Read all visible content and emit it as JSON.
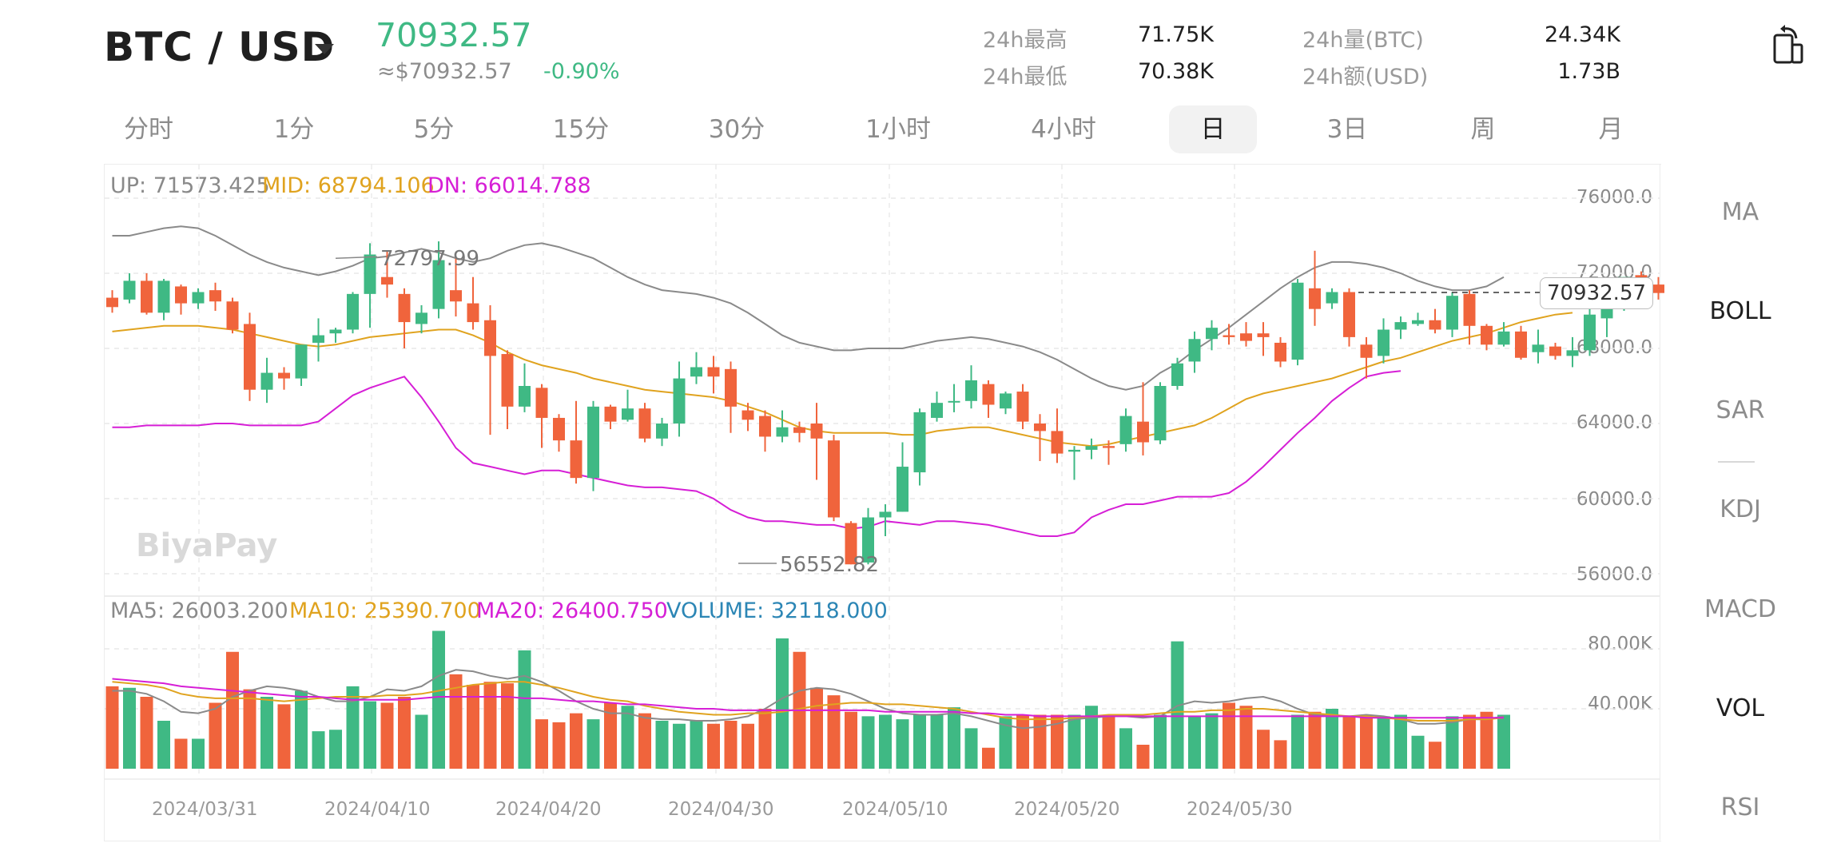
{
  "header": {
    "pair": "BTC / USD",
    "price": "70932.57",
    "approx": "≈$70932.57",
    "change": "-0.90%",
    "stats": {
      "high_label": "24h最高",
      "high_value": "71.75K",
      "low_label": "24h最低",
      "low_value": "70.38K",
      "vol_label": "24h量(BTC)",
      "vol_value": "24.34K",
      "amt_label": "24h额(USD)",
      "amt_value": "1.73B"
    }
  },
  "timeframes": [
    "分时",
    "1分",
    "5分",
    "15分",
    "30分",
    "1小时",
    "4小时",
    "日",
    "3日",
    "周",
    "月"
  ],
  "active_timeframe": "日",
  "indicators": [
    "MA",
    "BOLL",
    "SAR",
    "KDJ",
    "MACD",
    "VOL",
    "RSI"
  ],
  "active_indicators": [
    "BOLL",
    "VOL"
  ],
  "legend": {
    "boll_up": "UP: 71573.425",
    "boll_mid": "MID: 68794.106",
    "boll_dn": "DN: 66014.788",
    "vol_ma5": "MA5: 26003.200",
    "vol_ma10": "MA10: 25390.700",
    "vol_ma20": "MA20: 26400.750",
    "volume": "VOLUME: 32118.000"
  },
  "markers": {
    "high": "72797.99",
    "low": "56552.82",
    "last": "70932.57"
  },
  "watermark": "BiyaPay",
  "colors": {
    "up": "#3fb984",
    "down": "#f0643c",
    "boll_up": "#8a8a8a",
    "boll_mid": "#e0a31f",
    "boll_dn": "#d61fd6",
    "vol_ma5": "#8a8a8a",
    "volume": "#2c86b5"
  },
  "chart_data": {
    "type": "candlestick",
    "price_axis": [
      "76000.0",
      "72000.0",
      "68000.0",
      "64000.0",
      "60000.0",
      "56000.0"
    ],
    "volume_axis": [
      "80.00K",
      "40.00K"
    ],
    "dates": [
      "2024/03/31",
      "2024/04/10",
      "2024/04/20",
      "2024/04/30",
      "2024/05/10",
      "2024/05/20",
      "2024/05/30"
    ],
    "candles": [
      [
        70700,
        70200,
        71100,
        69900
      ],
      [
        70600,
        71600,
        72000,
        70400
      ],
      [
        71600,
        69900,
        72000,
        69800
      ],
      [
        69900,
        71600,
        71700,
        69500
      ],
      [
        71300,
        70400,
        71400,
        69800
      ],
      [
        70400,
        71000,
        71200,
        70100
      ],
      [
        71100,
        70500,
        71500,
        70000
      ],
      [
        70500,
        69000,
        70700,
        68800
      ],
      [
        69300,
        65800,
        69900,
        65200
      ],
      [
        65800,
        66700,
        67500,
        65100
      ],
      [
        66700,
        66400,
        67000,
        65800
      ],
      [
        66400,
        68200,
        68200,
        66000
      ],
      [
        68300,
        68700,
        69600,
        67300
      ],
      [
        68800,
        69000,
        69100,
        68300
      ],
      [
        69000,
        70900,
        71000,
        68800
      ],
      [
        70900,
        73000,
        73600,
        69100
      ],
      [
        71800,
        71400,
        73200,
        70700
      ],
      [
        70900,
        69400,
        71200,
        68000
      ],
      [
        69300,
        69900,
        70300,
        68800
      ],
      [
        70100,
        72700,
        73700,
        69600
      ],
      [
        71100,
        70500,
        72800,
        69700
      ],
      [
        70400,
        69400,
        71800,
        69000
      ],
      [
        69500,
        67600,
        70300,
        63400
      ],
      [
        67700,
        64900,
        67900,
        63700
      ],
      [
        64900,
        66000,
        67200,
        64600
      ],
      [
        65900,
        64300,
        66100,
        62700
      ],
      [
        64300,
        63100,
        64500,
        62500
      ],
      [
        63100,
        61100,
        65200,
        60800
      ],
      [
        61100,
        64900,
        65200,
        60400
      ],
      [
        64900,
        64100,
        65000,
        63700
      ],
      [
        64200,
        64800,
        65800,
        64100
      ],
      [
        64800,
        63200,
        65100,
        63000
      ],
      [
        63200,
        64000,
        64300,
        62800
      ],
      [
        64000,
        66400,
        67300,
        63300
      ],
      [
        66500,
        67000,
        67800,
        66100
      ],
      [
        67000,
        66500,
        67600,
        65600
      ],
      [
        66900,
        64900,
        67300,
        63500
      ],
      [
        64700,
        64200,
        65100,
        63600
      ],
      [
        64400,
        63300,
        64700,
        62500
      ],
      [
        63300,
        63800,
        64700,
        63000
      ],
      [
        63800,
        63500,
        64100,
        63000
      ],
      [
        64000,
        63200,
        65100,
        61000
      ],
      [
        63100,
        59000,
        63400,
        58800
      ],
      [
        58700,
        56500,
        58800,
        56500
      ],
      [
        56600,
        59000,
        59500,
        56500
      ],
      [
        59000,
        59300,
        59700,
        58000
      ],
      [
        59300,
        61700,
        63000,
        59300
      ],
      [
        61400,
        64600,
        64800,
        60700
      ],
      [
        64300,
        65100,
        65700,
        64100
      ],
      [
        65200,
        65200,
        66100,
        64600
      ],
      [
        65200,
        66300,
        67100,
        64800
      ],
      [
        66100,
        65000,
        66300,
        64300
      ],
      [
        64800,
        65600,
        65700,
        64500
      ],
      [
        65700,
        64100,
        66100,
        63700
      ],
      [
        64000,
        63600,
        64500,
        62000
      ],
      [
        63600,
        62400,
        64800,
        61900
      ],
      [
        62500,
        62600,
        62800,
        61000
      ],
      [
        62600,
        62800,
        63200,
        62100
      ],
      [
        62800,
        62700,
        63100,
        61800
      ],
      [
        62900,
        64400,
        64800,
        62500
      ],
      [
        64100,
        63000,
        66200,
        62300
      ],
      [
        63100,
        66000,
        66200,
        62900
      ],
      [
        66000,
        67200,
        67500,
        65800
      ],
      [
        67300,
        68500,
        68900,
        66700
      ],
      [
        68500,
        69100,
        69500,
        67900
      ],
      [
        68700,
        68600,
        69300,
        68200
      ],
      [
        68800,
        68400,
        69400,
        68100
      ],
      [
        68800,
        68600,
        69400,
        67600
      ],
      [
        68300,
        67300,
        68600,
        67000
      ],
      [
        67400,
        71500,
        71700,
        67100
      ],
      [
        71200,
        70100,
        73200,
        69200
      ],
      [
        70400,
        71000,
        71200,
        70100
      ],
      [
        71000,
        68600,
        71200,
        68100
      ],
      [
        68200,
        67500,
        68600,
        66400
      ],
      [
        67600,
        69000,
        69600,
        67200
      ],
      [
        69000,
        69400,
        69700,
        68500
      ],
      [
        69300,
        69500,
        69900,
        69200
      ],
      [
        69500,
        69000,
        70100,
        68800
      ],
      [
        69000,
        70800,
        71000,
        68600
      ],
      [
        70900,
        69200,
        71100,
        68200
      ],
      [
        69200,
        68200,
        69300,
        67900
      ],
      [
        68200,
        68900,
        69400,
        68100
      ],
      [
        68900,
        67500,
        69200,
        67400
      ],
      [
        67800,
        68200,
        69000,
        67200
      ],
      [
        68100,
        67600,
        68300,
        67400
      ],
      [
        67600,
        67900,
        68600,
        67000
      ],
      [
        67900,
        69800,
        70100,
        67600
      ],
      [
        69600,
        70600,
        71000,
        68600
      ],
      [
        70400,
        71800,
        71800,
        70000
      ],
      [
        71900,
        71100,
        72100,
        70700
      ],
      [
        71400,
        70950,
        71800,
        70600
      ]
    ],
    "boll_up": [
      74000,
      74000,
      74200,
      74400,
      74500,
      74400,
      74000,
      73500,
      73000,
      72600,
      72300,
      72100,
      71900,
      72100,
      72400,
      72800,
      72900,
      73100,
      73300,
      73100,
      72800,
      72600,
      72800,
      73200,
      73500,
      73600,
      73400,
      73100,
      72800,
      72300,
      71800,
      71400,
      71100,
      71000,
      70900,
      70700,
      70400,
      69900,
      69300,
      68700,
      68300,
      68100,
      67900,
      67900,
      68000,
      68000,
      68000,
      68200,
      68400,
      68500,
      68600,
      68500,
      68300,
      68100,
      67800,
      67400,
      66900,
      66400,
      66000,
      65800,
      66000,
      66700,
      67200,
      67900,
      68500,
      69100,
      69800,
      70500,
      71200,
      71800,
      72300,
      72600,
      72600,
      72500,
      72300,
      72000,
      71600,
      71300,
      71100,
      71100,
      71300,
      71800
    ],
    "boll_mid": [
      68900,
      69000,
      69100,
      69200,
      69200,
      69200,
      69100,
      69000,
      68800,
      68600,
      68400,
      68200,
      68100,
      68200,
      68400,
      68600,
      68700,
      68800,
      68900,
      69000,
      69000,
      68700,
      68300,
      67800,
      67400,
      67100,
      66900,
      66700,
      66400,
      66200,
      66000,
      65800,
      65700,
      65600,
      65500,
      65400,
      65200,
      64900,
      64600,
      64200,
      63800,
      63600,
      63500,
      63500,
      63500,
      63500,
      63400,
      63400,
      63600,
      63700,
      63800,
      63800,
      63600,
      63400,
      63200,
      63000,
      62900,
      62800,
      62900,
      63100,
      63300,
      63500,
      63700,
      63900,
      64300,
      64800,
      65300,
      65600,
      65800,
      66000,
      66200,
      66400,
      66700,
      67000,
      67300,
      67500,
      67800,
      68100,
      68400,
      68600,
      68800,
      69100,
      69400,
      69600,
      69800,
      69900
    ],
    "boll_dn": [
      63800,
      63800,
      63900,
      63900,
      63900,
      63900,
      64000,
      64000,
      63900,
      63900,
      63900,
      63900,
      64100,
      64800,
      65500,
      65900,
      66200,
      66500,
      65400,
      64100,
      62700,
      61900,
      61700,
      61500,
      61300,
      61500,
      61500,
      61300,
      61100,
      60900,
      60700,
      60600,
      60600,
      60500,
      60400,
      60000,
      59400,
      59000,
      58800,
      58800,
      58700,
      58600,
      58600,
      58400,
      58500,
      58800,
      58700,
      58600,
      58800,
      58800,
      58700,
      58600,
      58400,
      58200,
      58000,
      58000,
      58200,
      59000,
      59400,
      59700,
      59700,
      59900,
      60100,
      60100,
      60100,
      60300,
      60900,
      61700,
      62600,
      63500,
      64300,
      65200,
      65900,
      66500,
      66700,
      66800
    ],
    "volume": [
      55,
      54,
      48,
      32,
      20,
      20,
      44,
      78,
      53,
      48,
      43,
      52,
      25,
      26,
      55,
      45,
      44,
      48,
      36,
      92,
      63,
      56,
      58,
      57,
      79,
      33,
      31,
      37,
      33,
      44,
      42,
      37,
      32,
      30,
      32,
      30,
      32,
      30,
      40,
      87,
      78,
      54,
      49,
      38,
      35,
      36,
      33,
      36,
      36,
      41,
      27,
      14,
      35,
      36,
      36,
      36,
      36,
      42,
      36,
      27,
      16,
      36,
      85,
      35,
      37,
      44,
      42,
      26,
      19,
      36,
      38,
      40,
      35,
      36,
      35,
      36,
      22,
      18,
      35,
      36,
      38,
      36
    ],
    "vol_ma5": [
      52,
      52,
      50,
      45,
      38,
      37,
      40,
      48,
      52,
      55,
      54,
      52,
      48,
      45,
      45,
      48,
      53,
      52,
      55,
      62,
      66,
      65,
      62,
      60,
      62,
      58,
      52,
      45,
      40,
      37,
      37,
      34,
      33,
      33,
      32,
      32,
      33,
      35,
      40,
      47,
      52,
      54,
      53,
      50,
      45,
      40,
      37,
      36,
      36,
      37,
      35,
      32,
      29,
      27,
      28,
      30,
      33,
      34,
      35,
      35,
      34,
      35,
      42,
      45,
      44,
      45,
      47,
      48,
      45,
      40,
      36,
      35,
      35,
      36,
      35,
      33,
      30,
      30,
      31,
      33,
      33,
      35
    ],
    "vol_ma10": [
      58,
      57,
      56,
      54,
      50,
      48,
      47,
      47,
      47,
      46,
      45,
      46,
      47,
      48,
      48,
      48,
      49,
      49,
      50,
      52,
      54,
      56,
      57,
      58,
      58,
      56,
      54,
      51,
      48,
      46,
      45,
      42,
      40,
      38,
      37,
      36,
      36,
      37,
      37,
      38,
      40,
      42,
      43,
      44,
      44,
      43,
      43,
      42,
      41,
      40,
      38,
      36,
      34,
      33,
      33,
      33,
      34,
      35,
      36,
      36,
      36,
      37,
      38,
      38,
      39,
      39,
      40,
      40,
      39,
      38,
      37,
      36,
      35,
      35,
      34,
      33,
      32,
      32,
      32,
      33,
      33,
      34
    ],
    "vol_ma20": [
      60,
      59,
      58,
      57,
      55,
      54,
      53,
      52,
      51,
      50,
      49,
      48,
      48,
      47,
      46,
      46,
      46,
      46,
      47,
      48,
      48,
      48,
      48,
      48,
      47,
      47,
      46,
      45,
      45,
      44,
      43,
      43,
      42,
      41,
      40,
      40,
      39,
      39,
      39,
      39,
      39,
      39,
      39,
      39,
      39,
      38,
      38,
      38,
      38,
      38,
      37,
      37,
      36,
      36,
      35,
      35,
      35,
      35,
      35,
      35,
      35,
      35,
      35,
      35,
      35,
      35,
      35,
      35,
      35,
      35,
      35,
      35,
      35,
      34,
      34,
      34,
      34,
      34,
      34,
      34,
      34,
      34
    ]
  }
}
